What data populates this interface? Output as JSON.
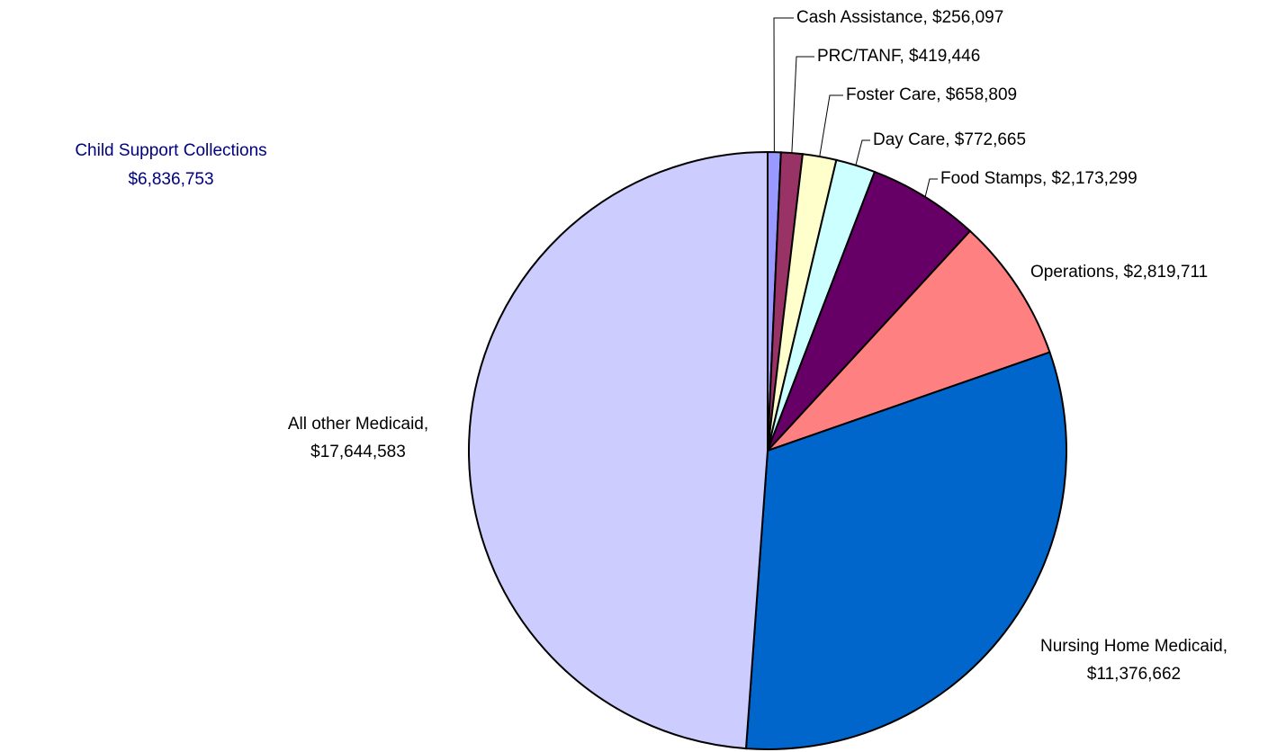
{
  "chart_data": {
    "type": "pie",
    "annotation": [
      "Child Support Collections",
      "$6,836,753"
    ],
    "values": [
      256097,
      419446,
      658809,
      772665,
      2173299,
      2819711,
      11376662,
      17644583
    ],
    "value_labels": [
      [
        "Cash Assistance, $256,097"
      ],
      [
        "PRC/TANF, $419,446"
      ],
      [
        "Foster Care, $658,809"
      ],
      [
        "Day Care, $772,665"
      ],
      [
        "Food Stamps, $2,173,299"
      ],
      [
        "Operations, $2,819,711"
      ],
      [
        "Nursing Home Medicaid,",
        "$11,376,662"
      ],
      [
        "All other Medicaid,",
        "$17,644,583"
      ]
    ],
    "colors": [
      "#9999ff",
      "#993366",
      "#ffffcc",
      "#ccffff",
      "#660066",
      "#ff8080",
      "#0066cc",
      "#ccccff"
    ]
  }
}
